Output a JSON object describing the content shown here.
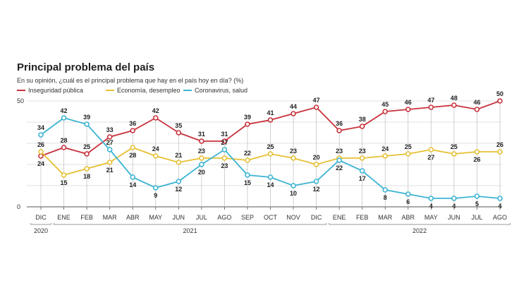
{
  "chart_data": {
    "type": "line",
    "title": "Principal problema del país",
    "subtitle": "En su opinión, ¿cuál es el principal problema que hay en el país hoy en día? (%)",
    "categories": [
      "DIC",
      "ENE",
      "FEB",
      "MAR",
      "ABR",
      "MAY",
      "JUN",
      "JUL",
      "AGO",
      "SEP",
      "OCT",
      "NOV",
      "DIC",
      "ENE",
      "FEB",
      "MAR",
      "ABR",
      "MAY",
      "JUN",
      "JUL",
      "AGO"
    ],
    "year_groups": [
      {
        "label": "2020",
        "from": 0,
        "to": 0
      },
      {
        "label": "2021",
        "from": 1,
        "to": 12
      },
      {
        "label": "2022",
        "from": 13,
        "to": 20
      }
    ],
    "ylim": [
      0,
      50
    ],
    "yticks": [
      0,
      50
    ],
    "grid": true,
    "legend_position": "top-left",
    "series": [
      {
        "name": "Inseguridad pública",
        "color": "#c8323c",
        "values": [
          24,
          28,
          25,
          33,
          36,
          42,
          35,
          31,
          31,
          39,
          41,
          44,
          47,
          36,
          38,
          45,
          46,
          47,
          48,
          46,
          50
        ]
      },
      {
        "name": "Economía, desempleo",
        "color": "#e6c032",
        "values": [
          26,
          15,
          18,
          21,
          28,
          24,
          21,
          23,
          23,
          22,
          25,
          23,
          20,
          23,
          23,
          24,
          25,
          27,
          25,
          26,
          26
        ]
      },
      {
        "name": "Coronavirus, salud",
        "color": "#3cb4d2",
        "values": [
          34,
          42,
          39,
          27,
          14,
          9,
          12,
          20,
          27,
          15,
          14,
          10,
          12,
          22,
          17,
          8,
          6,
          4,
          4,
          5,
          4
        ]
      }
    ]
  }
}
